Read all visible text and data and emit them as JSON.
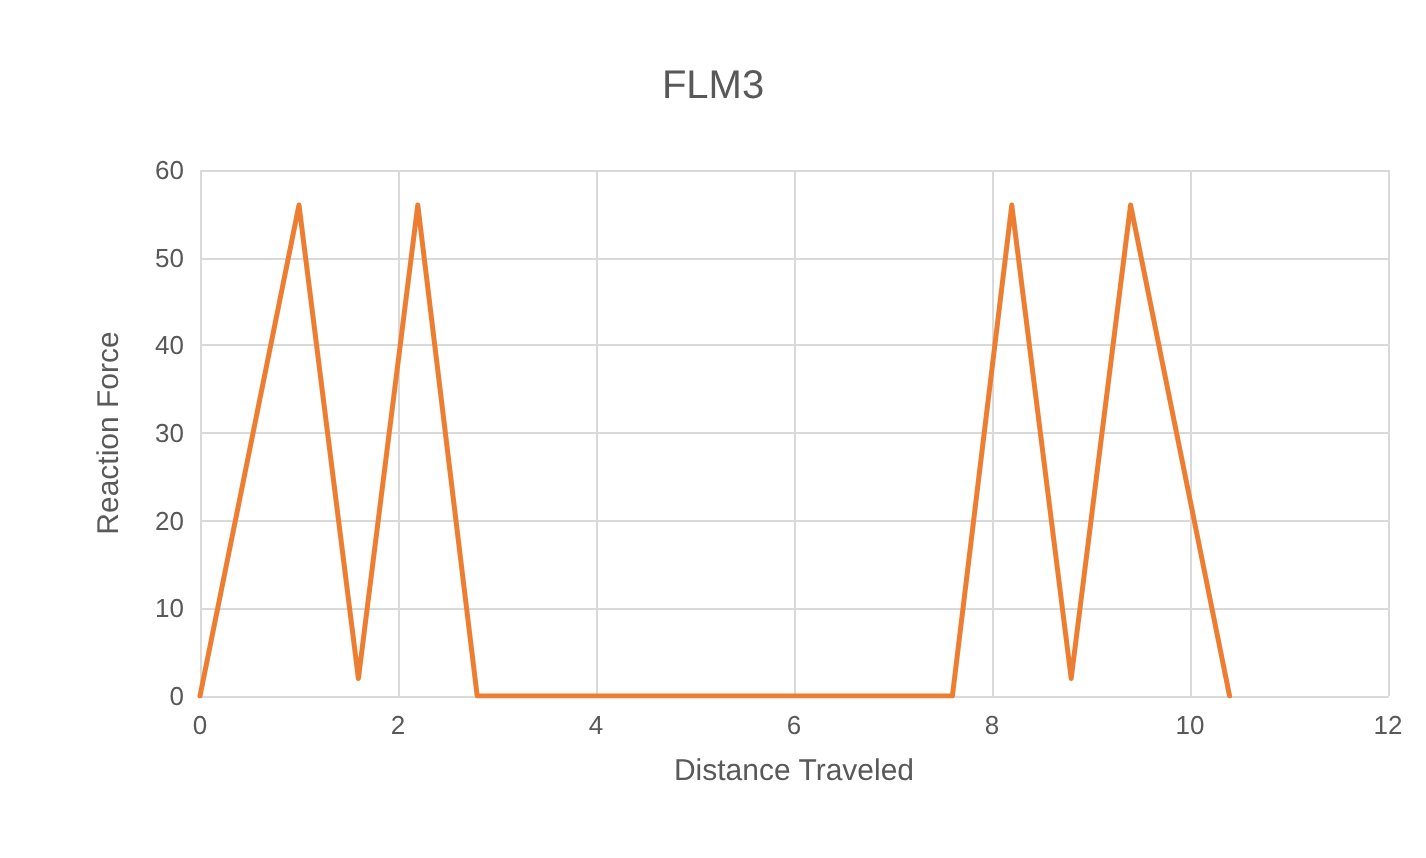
{
  "chart_data": {
    "type": "line",
    "title": "FLM3",
    "xlabel": "Distance Traveled",
    "ylabel": "Reaction Force",
    "x": [
      0,
      1,
      1.6,
      2.2,
      2.8,
      7.6,
      8.2,
      8.8,
      9.4,
      10.4
    ],
    "series": [
      {
        "color": "#ed7d31",
        "values": [
          0,
          56,
          2,
          56,
          0,
          0,
          56,
          2,
          56,
          0
        ]
      }
    ],
    "xlim": [
      0,
      12
    ],
    "xticks": [
      0,
      2,
      4,
      6,
      8,
      10,
      12
    ],
    "ylim": [
      0,
      60
    ],
    "yticks": [
      0,
      10,
      20,
      30,
      40,
      50,
      60
    ],
    "grid": true,
    "marker": "none",
    "line_style": "solid"
  }
}
